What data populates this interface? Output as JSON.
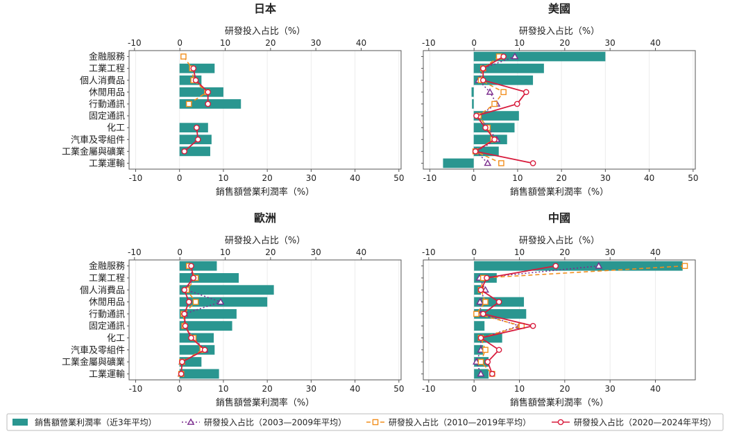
{
  "legend": [
    {
      "label": "銷售額營業利潤率（近3年平均）",
      "kind": "bar",
      "color": "#2a9690"
    },
    {
      "label": "研發投入占比（2003—2009年平均）",
      "kind": "dotted-triangle",
      "color": "#7b2d8e"
    },
    {
      "label": "研發投入占比（2010—2019年平均）",
      "kind": "dashed-square",
      "color": "#f28e1c"
    },
    {
      "label": "研發投入占比（2020—2024年平均）",
      "kind": "solid-circle",
      "color": "#d81b3c"
    }
  ],
  "chart_data": [
    {
      "type": "bar",
      "title": "日本",
      "xlabel_bottom": "銷售額營業利潤率（%）",
      "xlabel_top": "研發投入占比（%）",
      "bottom_ticks": [
        "-10",
        "0",
        "10",
        "20",
        "30",
        "40",
        "50"
      ],
      "top_ticks": [
        "-10",
        "0",
        "10",
        "20",
        "30",
        "40"
      ],
      "bottom_range": [
        -11.5,
        50.5
      ],
      "top_range": [
        -11.2,
        48.8
      ],
      "categories": [
        "金融服務",
        "工業工程",
        "個人消費品",
        "休閒用品",
        "行動通訊",
        "固定通訊",
        "化工",
        "汽車及零組件",
        "工業金屬與礦業",
        "工業運輸"
      ],
      "bars": [
        null,
        8.0,
        5.0,
        10.0,
        14.0,
        null,
        6.5,
        7.3,
        7.0,
        null
      ],
      "series": [
        {
          "values": [
            null,
            null,
            null,
            null,
            null,
            null,
            null,
            null,
            null,
            null
          ]
        },
        {
          "values": [
            0.8,
            2.7,
            3.0,
            6.0,
            2.0,
            null,
            null,
            null,
            null,
            null
          ]
        },
        {
          "values": [
            null,
            3.0,
            3.5,
            6.2,
            6.2,
            null,
            3.7,
            4.0,
            1.0,
            null
          ]
        }
      ]
    },
    {
      "type": "bar",
      "title": "美國",
      "xlabel_bottom": "銷售額營業利潤率（%）",
      "xlabel_top": "研發投入占比（%）",
      "bottom_ticks": [
        "-10",
        "0",
        "10",
        "20",
        "30",
        "40",
        "50"
      ],
      "top_ticks": [
        "-10",
        "0",
        "10",
        "20",
        "30",
        "40"
      ],
      "bottom_range": [
        -11.5,
        50.5
      ],
      "top_range": [
        -11.2,
        48.8
      ],
      "categories": [
        "金融服務",
        "工業工程",
        "個人消費品",
        "休閒用品",
        "行動通訊",
        "固定通訊",
        "化工",
        "汽車及零組件",
        "工業金屬與礦業",
        "工業運輸"
      ],
      "bars": [
        30.0,
        16.0,
        13.5,
        -0.5,
        -0.4,
        10.3,
        9.3,
        7.6,
        5.7,
        -7.0
      ],
      "series": [
        {
          "values": [
            9.0,
            2.0,
            1.0,
            3.5,
            5.0,
            1.0,
            3.0,
            5.0,
            0.5,
            3.0
          ]
        },
        {
          "values": [
            5.5,
            2.0,
            1.5,
            6.5,
            4.5,
            1.0,
            3.0,
            4.2,
            0.3,
            6.0
          ]
        },
        {
          "values": [
            6.5,
            2.0,
            2.0,
            11.5,
            9.5,
            0.5,
            2.5,
            4.5,
            0.3,
            13.0
          ]
        }
      ]
    },
    {
      "type": "bar",
      "title": "歐洲",
      "xlabel_bottom": "銷售額營業利潤率（%）",
      "xlabel_top": "研發投入占比（%）",
      "bottom_ticks": [
        "-10",
        "0",
        "10",
        "20",
        "30",
        "40",
        "50"
      ],
      "top_ticks": [
        "-10",
        "0",
        "10",
        "20",
        "30",
        "40"
      ],
      "bottom_range": [
        -11.5,
        50.5
      ],
      "top_range": [
        -11.2,
        48.8
      ],
      "categories": [
        "金融服務",
        "工業工程",
        "個人消費品",
        "休閒用品",
        "行動通訊",
        "固定通訊",
        "化工",
        "汽車及零組件",
        "工業金屬與礦業",
        "工業運輸"
      ],
      "bars": [
        8.5,
        13.5,
        21.5,
        20.0,
        13.0,
        12.0,
        7.8,
        8.0,
        5.0,
        9.0
      ],
      "series": [
        {
          "values": [
            2.0,
            3.0,
            1.5,
            9.0,
            1.0,
            1.0,
            3.0,
            5.5,
            0.5,
            0.3
          ]
        },
        {
          "values": [
            2.0,
            3.5,
            1.5,
            3.5,
            0.8,
            1.0,
            3.0,
            5.0,
            0.5,
            0.3
          ]
        },
        {
          "values": [
            2.5,
            3.0,
            1.0,
            2.0,
            1.0,
            1.2,
            2.5,
            5.5,
            0.5,
            0.3
          ]
        }
      ]
    },
    {
      "type": "bar",
      "title": "中國",
      "xlabel_bottom": "銷售額營業利潤率（%）",
      "xlabel_top": "研發投入占比（%）",
      "bottom_ticks": [
        "-10",
        "0",
        "10",
        "20",
        "30",
        "40"
      ],
      "top_ticks": [
        "-10",
        "0",
        "10",
        "20",
        "30",
        "40"
      ],
      "bottom_range": [
        -11.2,
        48.8
      ],
      "top_range": [
        -11.2,
        48.8
      ],
      "categories": [
        "金融服務",
        "工業工程",
        "個人消費品",
        "休閒用品",
        "行動通訊",
        "固定通訊",
        "化工",
        "汽車及零組件",
        "工業金屬與礦業",
        "工業運輸"
      ],
      "bars": [
        46.0,
        5.0,
        1.5,
        11.0,
        11.5,
        2.3,
        6.2,
        2.0,
        3.2,
        3.2
      ],
      "series": [
        {
          "values": [
            27.5,
            1.2,
            2.5,
            1.3,
            1.5,
            10.0,
            1.5,
            1.5,
            0.5,
            1.5
          ]
        },
        {
          "values": [
            46.5,
            2.0,
            1.5,
            2.5,
            0.5,
            10.5,
            1.5,
            2.5,
            1.5,
            4.0
          ]
        },
        {
          "values": [
            18.0,
            2.8,
            1.5,
            5.5,
            2.0,
            13.0,
            1.5,
            5.5,
            3.0,
            4.0
          ]
        }
      ]
    }
  ]
}
